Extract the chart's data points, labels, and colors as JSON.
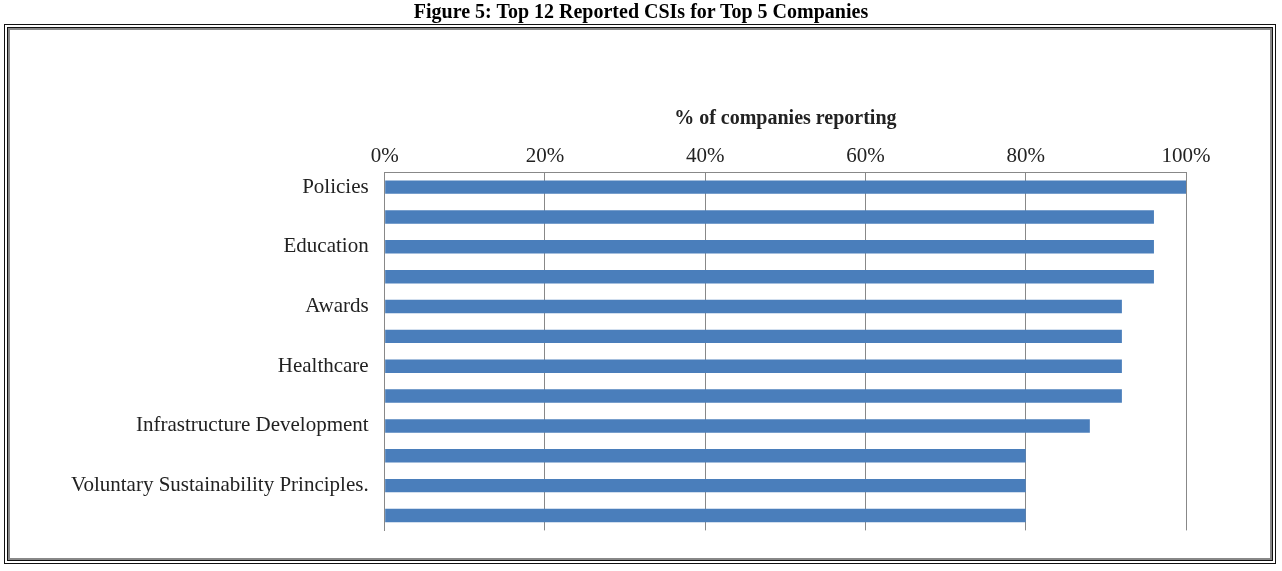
{
  "chart_data": {
    "type": "bar",
    "orientation": "horizontal",
    "title": "Figure 5: Top 12 Reported CSIs for Top 5 Companies",
    "xlabel": "% of companies reporting",
    "categories": [
      "Policies",
      null,
      "Education",
      null,
      "Awards",
      null,
      "Healthcare",
      null,
      "Infrastructure Development",
      null,
      "Voluntary Sustainability Principles.",
      null
    ],
    "values": [
      100,
      96,
      96,
      96,
      92,
      92,
      92,
      92,
      88,
      80,
      80,
      80
    ],
    "color": "#4a7ebb",
    "xlim": [
      0,
      100
    ],
    "xticks": [
      {
        "value": 0,
        "label": "0%"
      },
      {
        "value": 20,
        "label": "20%"
      },
      {
        "value": 40,
        "label": "40%"
      },
      {
        "value": 60,
        "label": "60%"
      },
      {
        "value": 80,
        "label": "80%"
      },
      {
        "value": 100,
        "label": "100%"
      }
    ],
    "grid": "x",
    "legend": false
  }
}
